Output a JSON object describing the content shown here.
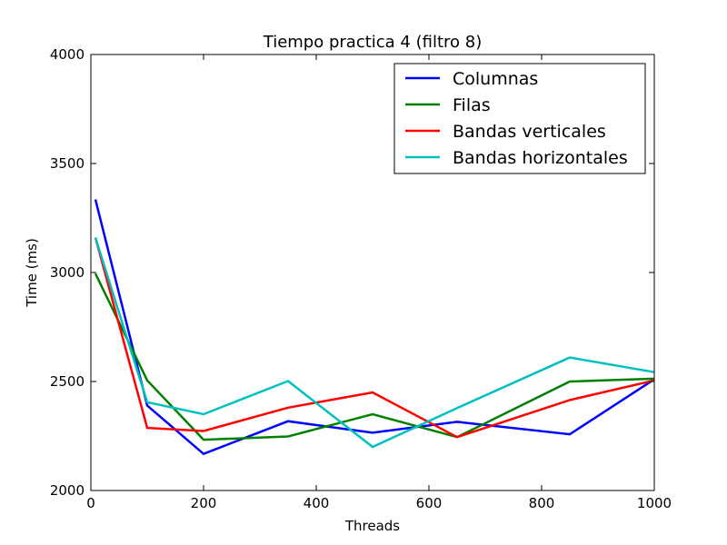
{
  "chart_data": {
    "type": "line",
    "title": "Tiempo practica 4 (filtro 8)",
    "xlabel": "Threads",
    "ylabel": "Time (ms)",
    "xlim": [
      0,
      1000
    ],
    "ylim": [
      2000,
      4000
    ],
    "xticks": [
      0,
      200,
      400,
      600,
      800,
      1000
    ],
    "yticks": [
      2000,
      2500,
      3000,
      3500,
      4000
    ],
    "grid": false,
    "legend_position": "top-right",
    "x": [
      8,
      100,
      200,
      350,
      500,
      650,
      850,
      1000
    ],
    "series": [
      {
        "name": "Columnas",
        "color": "#0000ff",
        "values": [
          3335,
          2390,
          2168,
          2318,
          2265,
          2315,
          2258,
          2510
        ]
      },
      {
        "name": "Filas",
        "color": "#008000",
        "values": [
          2995,
          2505,
          2233,
          2248,
          2350,
          2245,
          2500,
          2513
        ]
      },
      {
        "name": "Bandas verticales",
        "color": "#ff0000",
        "values": [
          3160,
          2287,
          2273,
          2380,
          2450,
          2245,
          2415,
          2505
        ]
      },
      {
        "name": "Bandas horizontales",
        "color": "#00bfbf",
        "values": [
          3160,
          2405,
          2350,
          2502,
          2200,
          2378,
          2610,
          2543
        ]
      }
    ]
  }
}
